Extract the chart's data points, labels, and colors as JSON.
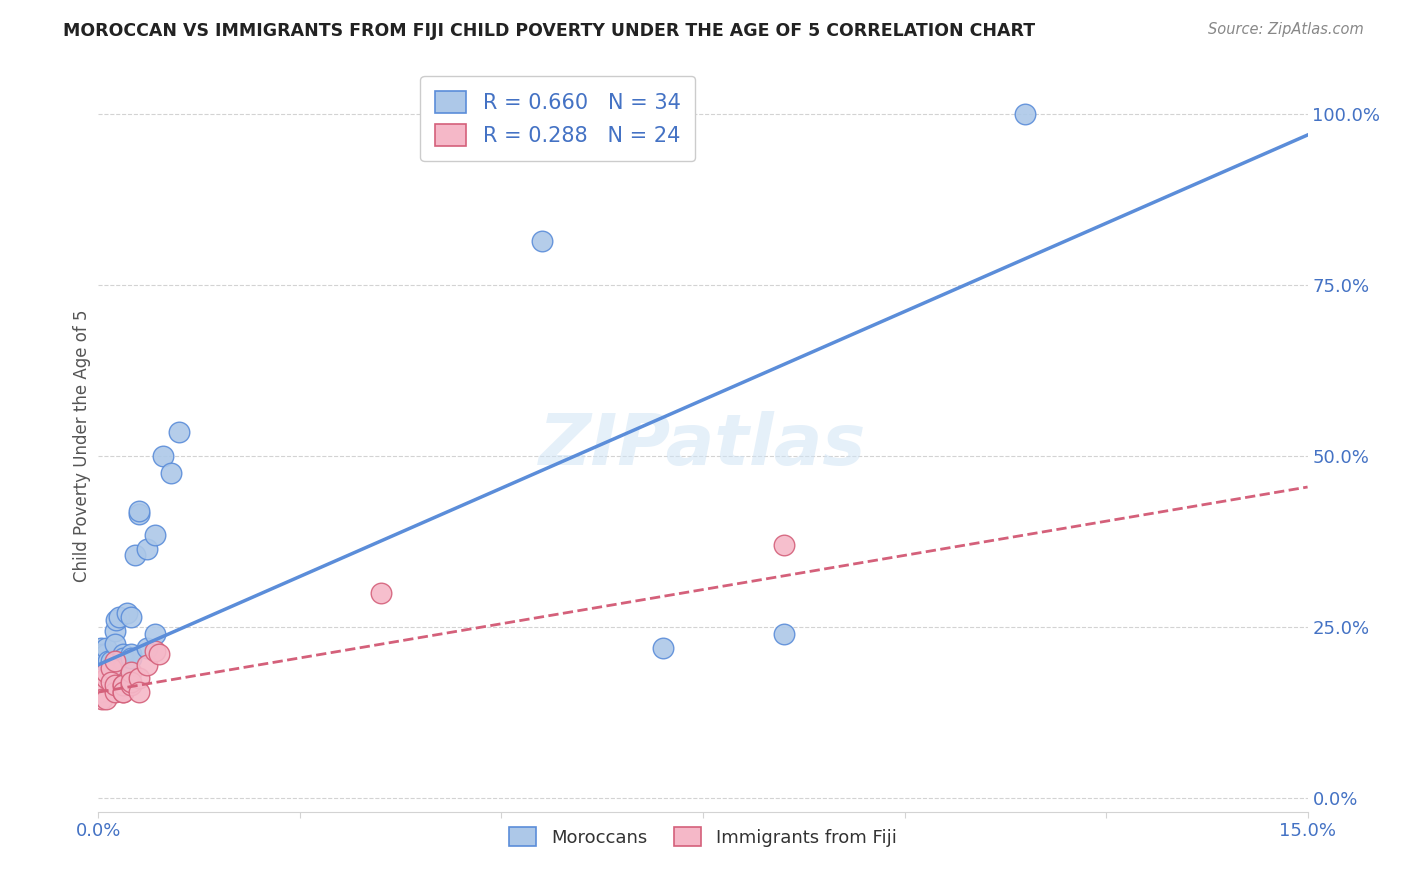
{
  "title": "MOROCCAN VS IMMIGRANTS FROM FIJI CHILD POVERTY UNDER THE AGE OF 5 CORRELATION CHART",
  "source": "Source: ZipAtlas.com",
  "ylabel": "Child Poverty Under the Age of 5",
  "xlim": [
    0.0,
    0.15
  ],
  "ylim": [
    -0.02,
    1.05
  ],
  "ytick_vals": [
    0.0,
    0.25,
    0.5,
    0.75,
    1.0
  ],
  "ytick_labels_right": [
    "0.0%",
    "25.0%",
    "50.0%",
    "75.0%",
    "100.0%"
  ],
  "moroccan_color": "#adc8e8",
  "moroccan_line_color": "#5b8dd9",
  "fiji_color": "#f5b8c8",
  "fiji_line_color": "#d4607a",
  "moroccan_R": 0.66,
  "moroccan_N": 34,
  "fiji_R": 0.288,
  "fiji_N": 24,
  "moroccan_x": [
    0.0003,
    0.0005,
    0.0008,
    0.001,
    0.001,
    0.0012,
    0.0015,
    0.0015,
    0.002,
    0.002,
    0.0022,
    0.0025,
    0.003,
    0.003,
    0.003,
    0.003,
    0.0035,
    0.004,
    0.004,
    0.004,
    0.0045,
    0.005,
    0.005,
    0.006,
    0.006,
    0.007,
    0.007,
    0.008,
    0.009,
    0.01,
    0.055,
    0.07,
    0.085,
    0.115
  ],
  "moroccan_y": [
    0.22,
    0.21,
    0.2,
    0.21,
    0.22,
    0.2,
    0.2,
    0.19,
    0.245,
    0.225,
    0.26,
    0.265,
    0.205,
    0.21,
    0.205,
    0.19,
    0.27,
    0.265,
    0.21,
    0.205,
    0.355,
    0.415,
    0.42,
    0.365,
    0.22,
    0.24,
    0.385,
    0.5,
    0.475,
    0.535,
    0.815,
    0.22,
    0.24,
    1.0
  ],
  "fiji_x": [
    0.0003,
    0.0005,
    0.001,
    0.001,
    0.001,
    0.0015,
    0.0015,
    0.002,
    0.002,
    0.002,
    0.003,
    0.003,
    0.003,
    0.003,
    0.004,
    0.004,
    0.004,
    0.005,
    0.005,
    0.006,
    0.007,
    0.0075,
    0.035,
    0.085
  ],
  "fiji_y": [
    0.155,
    0.145,
    0.175,
    0.185,
    0.145,
    0.19,
    0.17,
    0.155,
    0.165,
    0.2,
    0.165,
    0.155,
    0.165,
    0.155,
    0.165,
    0.185,
    0.17,
    0.175,
    0.155,
    0.195,
    0.215,
    0.21,
    0.3,
    0.37
  ],
  "moroccan_trendline_x": [
    0.0,
    0.15
  ],
  "moroccan_trendline_y": [
    0.195,
    0.97
  ],
  "fiji_trendline_x": [
    0.0,
    0.15
  ],
  "fiji_trendline_y": [
    0.155,
    0.455
  ]
}
